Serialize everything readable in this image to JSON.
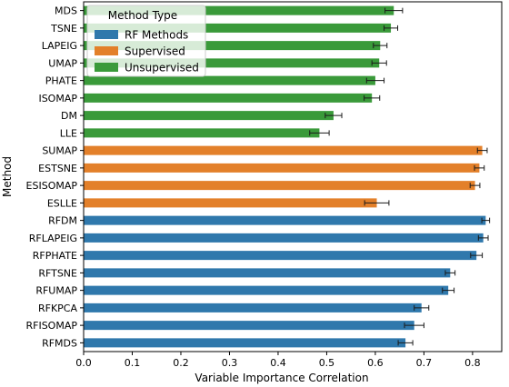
{
  "chart_data": {
    "type": "bar",
    "orientation": "horizontal",
    "xlabel": "Variable Importance Correlation",
    "ylabel": "Method",
    "xlim": [
      0.0,
      0.86
    ],
    "xticks": [
      0.0,
      0.1,
      0.2,
      0.3,
      0.4,
      0.5,
      0.6,
      0.7,
      0.8
    ],
    "xtick_labels": [
      "0.0",
      "0.1",
      "0.2",
      "0.3",
      "0.4",
      "0.5",
      "0.6",
      "0.7",
      "0.8"
    ],
    "grid": false,
    "legend": {
      "title": "Method Type",
      "placement": "top-left",
      "entries": [
        {
          "label": "RF Methods",
          "color": "#2f78ac"
        },
        {
          "label": "Supervised",
          "color": "#e3802a"
        },
        {
          "label": "Unsupervised",
          "color": "#3a9a3a"
        }
      ]
    },
    "categories": [
      "MDS",
      "TSNE",
      "LAPEIG",
      "UMAP",
      "PHATE",
      "ISOMAP",
      "DM",
      "LLE",
      "SUMAP",
      "ESTSNE",
      "ESISOMAP",
      "ESLLE",
      "RFDM",
      "RFLAPEIG",
      "RFPHATE",
      "RFTSNE",
      "RFUMAP",
      "RFKPCA",
      "RFISOMAP",
      "RFMDS"
    ],
    "groups": [
      "Unsupervised",
      "Unsupervised",
      "Unsupervised",
      "Unsupervised",
      "Unsupervised",
      "Unsupervised",
      "Unsupervised",
      "Unsupervised",
      "Supervised",
      "Supervised",
      "Supervised",
      "Supervised",
      "RF Methods",
      "RF Methods",
      "RF Methods",
      "RF Methods",
      "RF Methods",
      "RF Methods",
      "RF Methods",
      "RF Methods"
    ],
    "values": [
      0.638,
      0.632,
      0.61,
      0.608,
      0.6,
      0.593,
      0.514,
      0.485,
      0.82,
      0.814,
      0.805,
      0.603,
      0.827,
      0.822,
      0.808,
      0.754,
      0.75,
      0.695,
      0.68,
      0.662
    ],
    "errors": [
      0.018,
      0.014,
      0.014,
      0.015,
      0.018,
      0.016,
      0.017,
      0.02,
      0.01,
      0.01,
      0.01,
      0.025,
      0.008,
      0.01,
      0.012,
      0.01,
      0.012,
      0.015,
      0.02,
      0.015
    ]
  }
}
